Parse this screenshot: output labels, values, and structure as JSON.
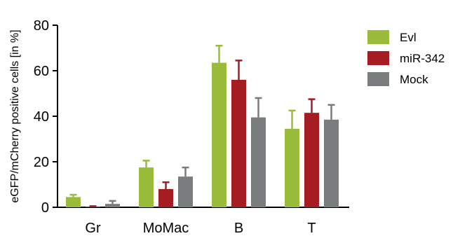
{
  "chart_data": {
    "type": "bar",
    "title": "",
    "xlabel": "",
    "ylabel": "eGFP/mCherry positive cells [in %]",
    "ylim": [
      0,
      80
    ],
    "yticks": [
      0,
      20,
      40,
      60,
      80
    ],
    "categories": [
      "Gr",
      "MoMac",
      "B",
      "T"
    ],
    "legend_position": "top-right",
    "grid": false,
    "series": [
      {
        "name": "Evl",
        "color": "#9bbb3b",
        "values": [
          4.5,
          17.5,
          63.5,
          34.5
        ],
        "errors": [
          1.0,
          3.0,
          7.5,
          8.0
        ]
      },
      {
        "name": "miR-342",
        "color": "#a51c22",
        "values": [
          0.3,
          8.0,
          56.0,
          41.5
        ],
        "errors": [
          0.2,
          3.0,
          8.5,
          6.0
        ]
      },
      {
        "name": "Mock",
        "color": "#7a7d7e",
        "values": [
          1.5,
          13.5,
          39.5,
          38.5
        ],
        "errors": [
          1.3,
          4.0,
          8.5,
          6.5
        ]
      }
    ]
  }
}
